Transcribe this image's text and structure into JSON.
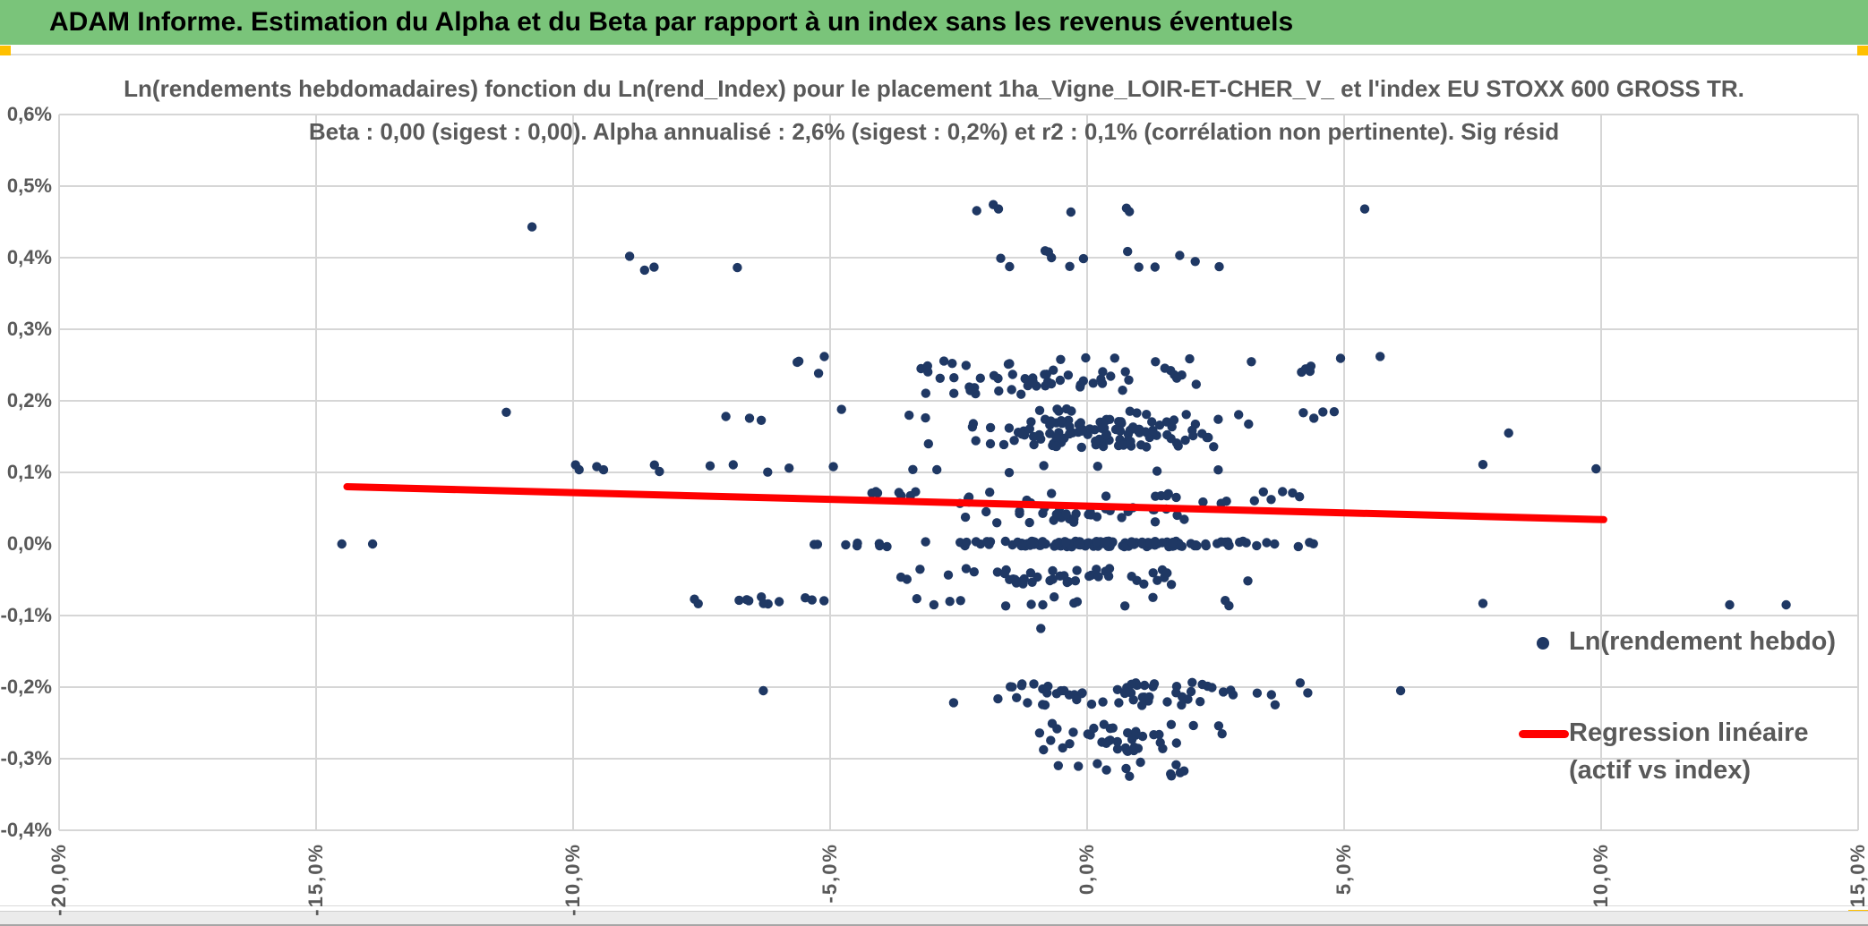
{
  "header": {
    "title": "ADAM Informe. Estimation du Alpha et du Beta par rapport à un index sans les revenus éventuels",
    "bg_color": "#7AC47A",
    "handle_color": "#FFC000"
  },
  "legend": {
    "item1_label": "Ln(rendement hebdo)",
    "item2_label_line1": "Regression linéaire",
    "item2_label_line2": "(actif vs index)"
  },
  "colors": {
    "scatter": "#1F3864",
    "regression": "#FF0000",
    "text_gray": "#595959",
    "gridline": "#D6D6D6"
  },
  "chart_data": {
    "type": "scatter",
    "title_line1": "Ln(rendements hebdomadaires) fonction du Ln(rend_Index) pour le placement 1ha_Vigne_LOIR-ET-CHER_V_ et l'index EU STOXX 600 GROSS TR.",
    "title_line2": "Beta : 0,00 (sigest : 0,00). Alpha annualisé : 2,6% (sigest : 0,2%) et r2 : 0,1% (corrélation non pertinente). Sig résid",
    "xlabel": "",
    "ylabel": "",
    "xlim": [
      -20,
      15
    ],
    "ylim": [
      -0.4,
      0.6
    ],
    "grid": true,
    "x_ticks": [
      {
        "pct": -20,
        "label": "-20,0%"
      },
      {
        "pct": -15,
        "label": "-15,0%"
      },
      {
        "pct": -10,
        "label": "-10,0%"
      },
      {
        "pct": -5,
        "label": "-5,0%"
      },
      {
        "pct": 0,
        "label": "0,0%"
      },
      {
        "pct": 5,
        "label": "5,0%"
      },
      {
        "pct": 10,
        "label": "10,0%"
      },
      {
        "pct": 15,
        "label": "15,0%"
      }
    ],
    "y_ticks": [
      {
        "pct": 0.6,
        "label": "0,6%",
        "grid": true
      },
      {
        "pct": 0.5,
        "label": "0,5%",
        "grid": true
      },
      {
        "pct": 0.4,
        "label": "0,4%",
        "grid": true
      },
      {
        "pct": 0.3,
        "label": "0,3%",
        "grid": true
      },
      {
        "pct": 0.2,
        "label": "0,2%",
        "grid": true
      },
      {
        "pct": 0.1,
        "label": "0,1%",
        "grid": true
      },
      {
        "pct": 0.0,
        "label": "0,0%",
        "grid": false
      },
      {
        "pct": -0.1,
        "label": "-0,1%",
        "grid": true
      },
      {
        "pct": -0.2,
        "label": "-0,2%",
        "grid": true
      },
      {
        "pct": -0.3,
        "label": "-0,3%",
        "grid": true
      },
      {
        "pct": -0.4,
        "label": "-0,4%",
        "grid": true
      }
    ],
    "series": [
      {
        "name": "Ln(rendement hebdo)",
        "marker": "dot",
        "color": "#1F3864",
        "note": "weekly log-returns, quantized in horizontal bands; bands give y value (%), x range (%), point count, y jitter, shape u=uniform g=gaussian m=mixture",
        "bands": [
          {
            "v": 0.465,
            "x0": -2.9,
            "x1": 1.4,
            "n": 6,
            "jy": 0.012,
            "s": "u"
          },
          {
            "v": 0.4,
            "x0": -1.7,
            "x1": 3.4,
            "n": 13,
            "jy": 0.014,
            "s": "u"
          },
          {
            "v": 0.385,
            "x0": -9.7,
            "x1": -4.5,
            "n": 3,
            "jy": 0.006,
            "s": "u"
          },
          {
            "v": 0.25,
            "x0": -6.5,
            "x1": 5.0,
            "n": 26,
            "jy": 0.012,
            "s": "u"
          },
          {
            "v": 0.225,
            "x0": -4.7,
            "x1": 3.7,
            "n": 42,
            "jy": 0.016,
            "s": "g"
          },
          {
            "v": 0.18,
            "x0": -7.3,
            "x1": 5.0,
            "n": 22,
            "jy": 0.009,
            "s": "u"
          },
          {
            "v": 0.155,
            "x0": -3.7,
            "x1": 3.8,
            "n": 110,
            "jy": 0.02,
            "s": "g"
          },
          {
            "v": 0.105,
            "x0": -10.2,
            "x1": 4.9,
            "n": 18,
            "jy": 0.006,
            "s": "u"
          },
          {
            "v": 0.065,
            "x0": -4.2,
            "x1": 4.2,
            "n": 30,
            "jy": 0.009,
            "s": "u"
          },
          {
            "v": 0.04,
            "x0": -3.7,
            "x1": 3.2,
            "n": 34,
            "jy": 0.011,
            "s": "g"
          },
          {
            "v": 0.0,
            "x0": -5.7,
            "x1": 4.8,
            "n": 150,
            "jy": 0.004,
            "s": "m"
          },
          {
            "v": -0.045,
            "x0": -4.7,
            "x1": 3.7,
            "n": 46,
            "jy": 0.012,
            "s": "g"
          },
          {
            "v": -0.08,
            "x0": -7.7,
            "x1": 3.2,
            "n": 26,
            "jy": 0.007,
            "s": "u"
          },
          {
            "v": -0.21,
            "x0": -3.7,
            "x1": 5.2,
            "n": 62,
            "jy": 0.017,
            "s": "g"
          },
          {
            "v": -0.27,
            "x0": -2.0,
            "x1": 3.4,
            "n": 40,
            "jy": 0.02,
            "s": "g"
          },
          {
            "v": -0.315,
            "x0": -0.7,
            "x1": 2.2,
            "n": 12,
            "jy": 0.011,
            "s": "u"
          }
        ],
        "outliers": [
          [
            -14.5,
            0.0
          ],
          [
            -13.9,
            0.0
          ],
          [
            -10.8,
            0.443
          ],
          [
            -8.9,
            0.402
          ],
          [
            -11.3,
            0.184
          ],
          [
            5.4,
            0.468
          ],
          [
            5.7,
            0.262
          ],
          [
            7.7,
            0.111
          ],
          [
            9.9,
            0.105
          ],
          [
            7.7,
            -0.083
          ],
          [
            12.5,
            -0.085
          ],
          [
            13.6,
            -0.085
          ],
          [
            -0.9,
            -0.118
          ],
          [
            6.1,
            -0.205
          ],
          [
            -6.3,
            -0.205
          ],
          [
            8.2,
            0.155
          ]
        ]
      },
      {
        "name": "Regression linéaire (actif vs index)",
        "type": "line",
        "color": "#FF0000",
        "points": [
          [
            -14.4,
            0.08
          ],
          [
            10.05,
            0.034
          ]
        ]
      }
    ]
  }
}
